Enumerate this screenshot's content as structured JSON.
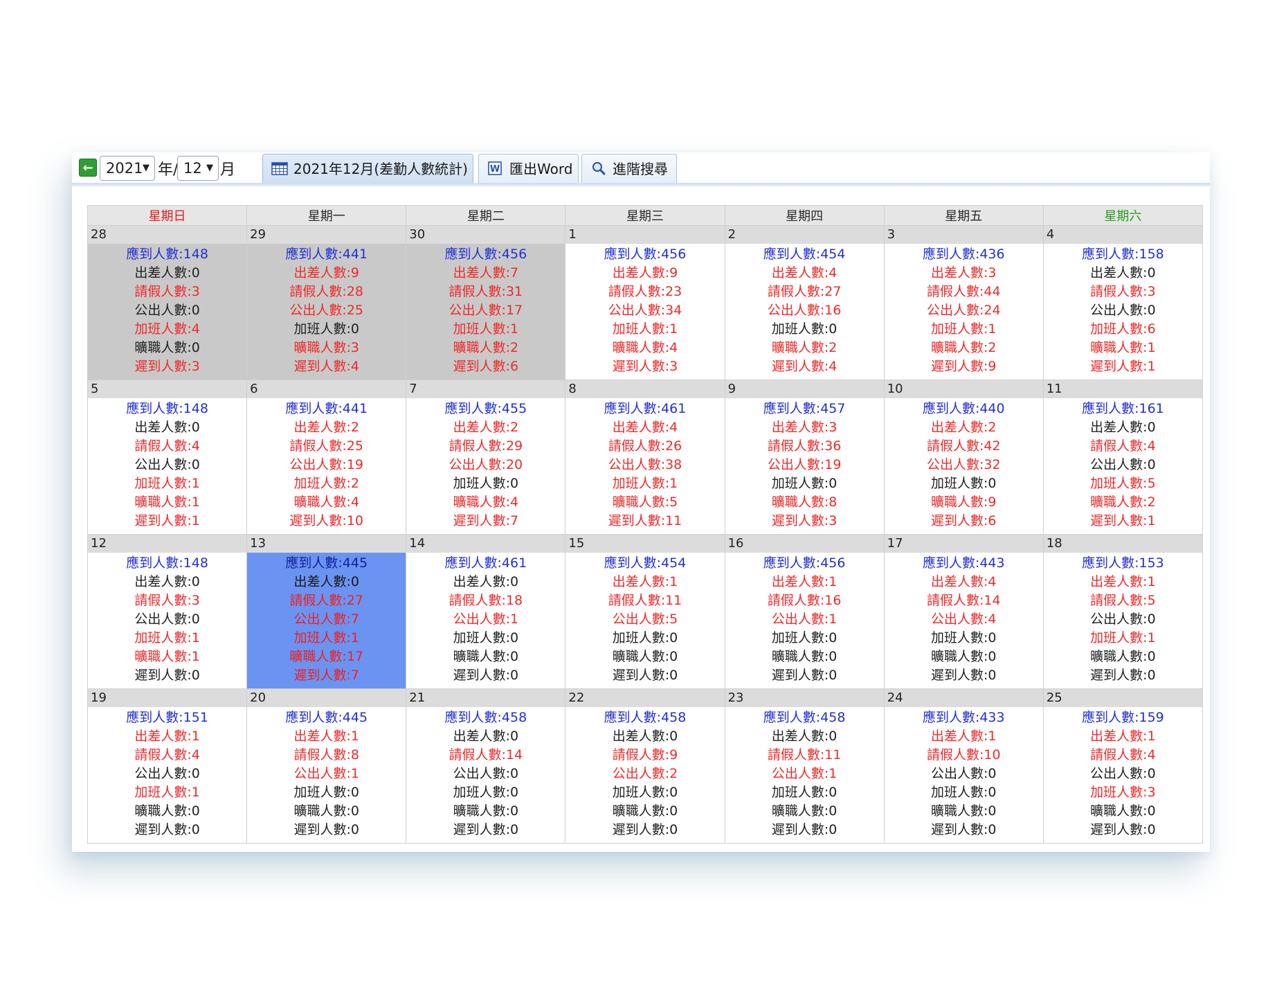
{
  "toolbar": {
    "year_value": "2021",
    "year_unit": "年/",
    "month_value": "12",
    "month_unit": "月",
    "tabs": [
      {
        "label": "2021年12月(差勤人數統計)",
        "icon": "calendar-icon"
      },
      {
        "label": "匯出Word",
        "icon": "word-icon"
      },
      {
        "label": "進階搜尋",
        "icon": "search-icon"
      }
    ]
  },
  "colors": {
    "blue": "#2230d6",
    "red": "#ef2a2a",
    "black": "#222222",
    "today": "#6a93f2",
    "past": "#c9c9c9",
    "sunday": "#e31b1b",
    "saturday": "#2b9a1e"
  },
  "weekdays": [
    "星期日",
    "星期一",
    "星期二",
    "星期三",
    "星期四",
    "星期五",
    "星期六"
  ],
  "labels": [
    "應到人數:",
    "出差人數:",
    "請假人數:",
    "公出人數:",
    "加班人數:",
    "曠職人數:",
    "遲到人數:"
  ],
  "weeks": [
    [
      {
        "date": "28",
        "state": "past",
        "values": [
          "148",
          "0",
          "3",
          "0",
          "4",
          "0",
          "3"
        ],
        "colors": [
          "blue",
          "black",
          "red",
          "black",
          "red",
          "black",
          "red"
        ]
      },
      {
        "date": "29",
        "state": "past",
        "values": [
          "441",
          "9",
          "28",
          "25",
          "0",
          "3",
          "4"
        ],
        "colors": [
          "blue",
          "red",
          "red",
          "red",
          "black",
          "red",
          "red"
        ]
      },
      {
        "date": "30",
        "state": "past",
        "values": [
          "456",
          "7",
          "31",
          "17",
          "1",
          "2",
          "6"
        ],
        "colors": [
          "blue",
          "red",
          "red",
          "red",
          "red",
          "red",
          "red"
        ]
      },
      {
        "date": "1",
        "state": "",
        "values": [
          "456",
          "9",
          "23",
          "34",
          "1",
          "4",
          "3"
        ],
        "colors": [
          "blue",
          "red",
          "red",
          "red",
          "red",
          "red",
          "red"
        ]
      },
      {
        "date": "2",
        "state": "",
        "values": [
          "454",
          "4",
          "27",
          "16",
          "0",
          "2",
          "4"
        ],
        "colors": [
          "blue",
          "red",
          "red",
          "red",
          "black",
          "red",
          "red"
        ]
      },
      {
        "date": "3",
        "state": "",
        "values": [
          "436",
          "3",
          "44",
          "24",
          "1",
          "2",
          "9"
        ],
        "colors": [
          "blue",
          "red",
          "red",
          "red",
          "red",
          "red",
          "red"
        ]
      },
      {
        "date": "4",
        "state": "",
        "values": [
          "158",
          "0",
          "3",
          "0",
          "6",
          "1",
          "1"
        ],
        "colors": [
          "blue",
          "black",
          "red",
          "black",
          "red",
          "red",
          "red"
        ]
      }
    ],
    [
      {
        "date": "5",
        "state": "",
        "values": [
          "148",
          "0",
          "4",
          "0",
          "1",
          "1",
          "1"
        ],
        "colors": [
          "blue",
          "black",
          "red",
          "black",
          "red",
          "red",
          "red"
        ]
      },
      {
        "date": "6",
        "state": "",
        "values": [
          "441",
          "2",
          "25",
          "19",
          "2",
          "4",
          "10"
        ],
        "colors": [
          "blue",
          "red",
          "red",
          "red",
          "red",
          "red",
          "red"
        ]
      },
      {
        "date": "7",
        "state": "",
        "values": [
          "455",
          "2",
          "29",
          "20",
          "0",
          "4",
          "7"
        ],
        "colors": [
          "blue",
          "red",
          "red",
          "red",
          "black",
          "red",
          "red"
        ]
      },
      {
        "date": "8",
        "state": "",
        "values": [
          "461",
          "4",
          "26",
          "38",
          "1",
          "5",
          "11"
        ],
        "colors": [
          "blue",
          "red",
          "red",
          "red",
          "red",
          "red",
          "red"
        ]
      },
      {
        "date": "9",
        "state": "",
        "values": [
          "457",
          "3",
          "36",
          "19",
          "0",
          "8",
          "3"
        ],
        "colors": [
          "blue",
          "red",
          "red",
          "red",
          "black",
          "red",
          "red"
        ]
      },
      {
        "date": "10",
        "state": "",
        "values": [
          "440",
          "2",
          "42",
          "32",
          "0",
          "9",
          "6"
        ],
        "colors": [
          "blue",
          "red",
          "red",
          "red",
          "black",
          "red",
          "red"
        ]
      },
      {
        "date": "11",
        "state": "",
        "values": [
          "161",
          "0",
          "4",
          "0",
          "5",
          "2",
          "1"
        ],
        "colors": [
          "blue",
          "black",
          "red",
          "black",
          "red",
          "red",
          "red"
        ]
      }
    ],
    [
      {
        "date": "12",
        "state": "",
        "values": [
          "148",
          "0",
          "3",
          "0",
          "1",
          "1",
          "0"
        ],
        "colors": [
          "blue",
          "black",
          "red",
          "black",
          "red",
          "red",
          "black"
        ]
      },
      {
        "date": "13",
        "state": "today",
        "values": [
          "445",
          "0",
          "27",
          "7",
          "1",
          "17",
          "7"
        ],
        "colors": [
          "blue",
          "black",
          "red",
          "red",
          "red",
          "red",
          "red"
        ]
      },
      {
        "date": "14",
        "state": "",
        "values": [
          "461",
          "0",
          "18",
          "1",
          "0",
          "0",
          "0"
        ],
        "colors": [
          "blue",
          "black",
          "red",
          "red",
          "black",
          "black",
          "black"
        ]
      },
      {
        "date": "15",
        "state": "",
        "values": [
          "454",
          "1",
          "11",
          "5",
          "0",
          "0",
          "0"
        ],
        "colors": [
          "blue",
          "red",
          "red",
          "red",
          "black",
          "black",
          "black"
        ]
      },
      {
        "date": "16",
        "state": "",
        "values": [
          "456",
          "1",
          "16",
          "1",
          "0",
          "0",
          "0"
        ],
        "colors": [
          "blue",
          "red",
          "red",
          "red",
          "black",
          "black",
          "black"
        ]
      },
      {
        "date": "17",
        "state": "",
        "values": [
          "443",
          "4",
          "14",
          "4",
          "0",
          "0",
          "0"
        ],
        "colors": [
          "blue",
          "red",
          "red",
          "red",
          "black",
          "black",
          "black"
        ]
      },
      {
        "date": "18",
        "state": "",
        "values": [
          "153",
          "1",
          "5",
          "0",
          "1",
          "0",
          "0"
        ],
        "colors": [
          "blue",
          "red",
          "red",
          "black",
          "red",
          "black",
          "black"
        ]
      }
    ],
    [
      {
        "date": "19",
        "state": "",
        "values": [
          "151",
          "1",
          "4",
          "0",
          "1",
          "0",
          "0"
        ],
        "colors": [
          "blue",
          "red",
          "red",
          "black",
          "red",
          "black",
          "black"
        ]
      },
      {
        "date": "20",
        "state": "",
        "values": [
          "445",
          "1",
          "8",
          "1",
          "0",
          "0",
          "0"
        ],
        "colors": [
          "blue",
          "red",
          "red",
          "red",
          "black",
          "black",
          "black"
        ]
      },
      {
        "date": "21",
        "state": "",
        "values": [
          "458",
          "0",
          "14",
          "0",
          "0",
          "0",
          "0"
        ],
        "colors": [
          "blue",
          "black",
          "red",
          "black",
          "black",
          "black",
          "black"
        ]
      },
      {
        "date": "22",
        "state": "",
        "values": [
          "458",
          "0",
          "9",
          "2",
          "0",
          "0",
          "0"
        ],
        "colors": [
          "blue",
          "black",
          "red",
          "red",
          "black",
          "black",
          "black"
        ]
      },
      {
        "date": "23",
        "state": "",
        "values": [
          "458",
          "0",
          "11",
          "1",
          "0",
          "0",
          "0"
        ],
        "colors": [
          "blue",
          "black",
          "red",
          "red",
          "black",
          "black",
          "black"
        ]
      },
      {
        "date": "24",
        "state": "",
        "values": [
          "433",
          "1",
          "10",
          "0",
          "0",
          "0",
          "0"
        ],
        "colors": [
          "blue",
          "red",
          "red",
          "black",
          "black",
          "black",
          "black"
        ]
      },
      {
        "date": "25",
        "state": "",
        "values": [
          "159",
          "1",
          "4",
          "0",
          "3",
          "0",
          "0"
        ],
        "colors": [
          "blue",
          "red",
          "red",
          "black",
          "red",
          "black",
          "black"
        ]
      }
    ]
  ]
}
